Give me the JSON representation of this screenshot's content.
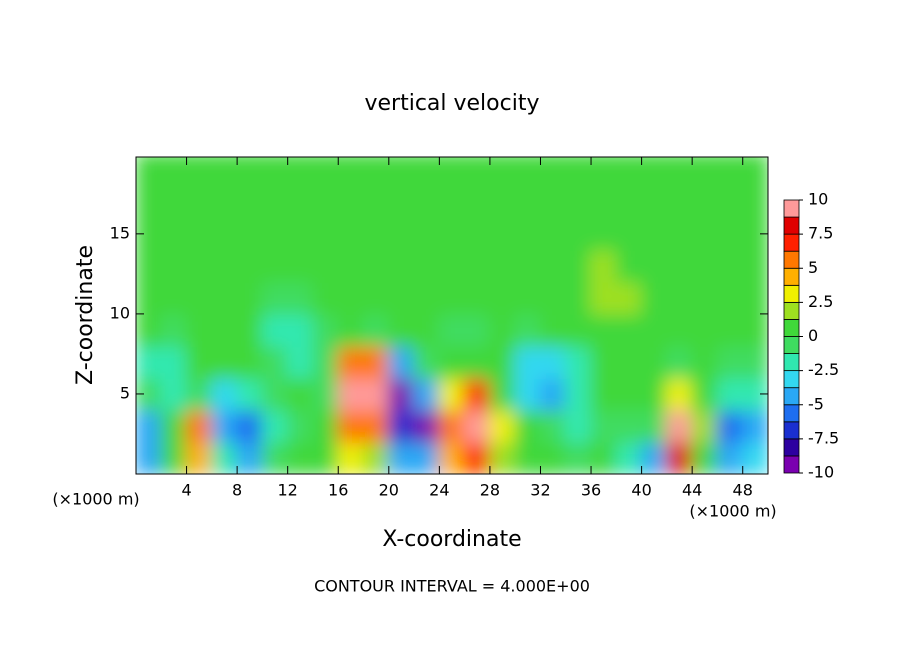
{
  "chart_data": {
    "type": "contour",
    "title": "vertical velocity",
    "x_label": "X-coordinate",
    "y_label": "Z-coordinate",
    "x_unit_left": "(×1000 m)",
    "x_unit_right": "(×1000 m)",
    "footer": "CONTOUR INTERVAL = 4.000E+00",
    "xlim": [
      0,
      50
    ],
    "ylim": [
      0,
      19.8
    ],
    "xticks": [
      4,
      8,
      12,
      16,
      20,
      24,
      28,
      32,
      36,
      40,
      44,
      48
    ],
    "yticks": [
      5,
      10,
      15
    ],
    "x": [
      1,
      3,
      5,
      7,
      9,
      11,
      13,
      15,
      17,
      19,
      21,
      23,
      25,
      27,
      29,
      31,
      33,
      35,
      37,
      39,
      41,
      43,
      45,
      47,
      49
    ],
    "z": [
      1,
      3,
      5,
      7,
      9,
      11,
      13,
      15,
      17,
      19
    ],
    "values": [
      [
        -5,
        0,
        4,
        -2,
        -5,
        -1,
        0,
        1,
        3,
        2,
        -5,
        -4,
        4,
        7,
        2,
        1,
        0,
        -1,
        0,
        -2,
        -4,
        8,
        1,
        -4,
        -3
      ],
      [
        -4,
        1,
        5,
        -4,
        -6,
        -2,
        -1,
        1,
        5,
        5,
        -7,
        -10,
        5,
        10,
        3,
        0,
        -1,
        -2,
        -1,
        -1,
        -1,
        10,
        2,
        -6,
        -5
      ],
      [
        -1,
        -2,
        -1,
        -3,
        -2,
        -1,
        0,
        -1,
        9,
        10,
        -10,
        -5,
        3,
        7,
        1,
        -3,
        -4,
        -2,
        0,
        1,
        0,
        3,
        1,
        -2,
        -2
      ],
      [
        -2,
        -2,
        0,
        1,
        0,
        -1,
        -2,
        -1,
        5,
        5,
        -4,
        -1,
        1,
        1,
        0,
        -3,
        -3,
        -2,
        0,
        0,
        0,
        -1,
        0,
        -1,
        -1
      ],
      [
        0,
        -1,
        0,
        1,
        0,
        -2,
        -2,
        -1,
        0,
        -1,
        0,
        0,
        -1,
        -1,
        0,
        -1,
        0,
        1,
        1,
        1,
        1,
        0,
        1,
        0,
        0
      ],
      [
        0,
        0,
        1,
        1,
        0,
        -1,
        -1,
        0,
        0,
        0,
        0,
        0,
        1,
        1,
        1,
        0,
        0,
        1,
        2,
        2,
        1,
        0,
        1,
        1,
        1
      ],
      [
        0,
        0,
        1,
        1,
        1,
        0,
        0,
        0,
        0,
        0,
        0,
        1,
        1,
        1,
        1,
        0,
        0,
        1,
        2,
        1,
        0,
        0,
        1,
        1,
        1
      ],
      [
        1,
        1,
        1,
        1,
        1,
        1,
        1,
        1,
        1,
        0,
        0,
        1,
        1,
        1,
        1,
        0,
        0,
        0,
        1,
        0,
        0,
        0,
        1,
        1,
        1
      ],
      [
        0,
        0,
        1,
        1,
        1,
        1,
        1,
        0,
        0,
        0,
        0,
        1,
        1,
        1,
        0,
        0,
        0,
        0,
        0,
        0,
        0,
        0,
        1,
        1,
        0
      ],
      [
        0,
        0,
        0,
        1,
        1,
        1,
        0,
        0,
        0,
        0,
        0,
        1,
        0,
        0,
        0,
        0,
        0,
        0,
        0,
        0,
        0,
        0,
        0,
        0,
        0
      ]
    ],
    "clim": [
      -10,
      10
    ],
    "cticks": [
      10,
      7.5,
      5,
      2.5,
      0,
      -2.5,
      -5,
      -7.5,
      -10
    ],
    "colors": [
      "#7a00b0",
      "#2d00a0",
      "#1a2fd0",
      "#1e6ef0",
      "#2aa8f5",
      "#33d8f0",
      "#30e8b0",
      "#3fdc60",
      "#40d83a",
      "#9ee020",
      "#f0f000",
      "#ffb000",
      "#ff7800",
      "#ff2000",
      "#e00000",
      "#ff9a9a"
    ]
  }
}
